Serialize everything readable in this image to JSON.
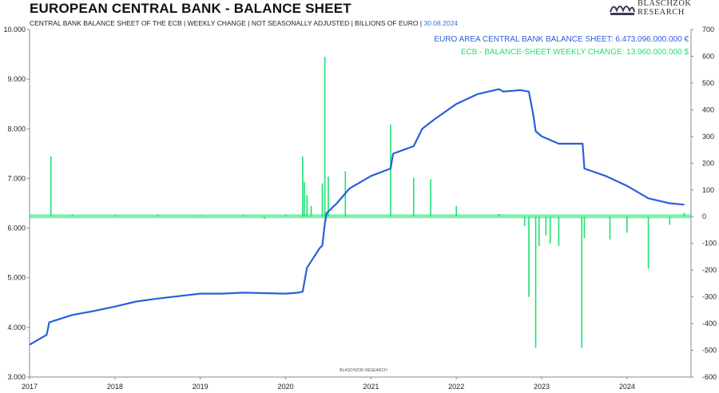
{
  "header": {
    "title": "EUROPEAN CENTRAL BANK - BALANCE SHEET",
    "subtitle": "CENTRAL BANK BALANCE SHEET OF THE ECB | WEEKLY CHANGE | NOT SEASONALLY ADJUSTED | BILLIONS OF EURO |",
    "date": "30.08.2024"
  },
  "logo": {
    "line1": "BLASCHZOK",
    "line2": "RESEARCH",
    "mark_icon": "blaschzok-logo-icon"
  },
  "chart_data": {
    "type": "line",
    "watermark": "BLASCHZOK RESEARCH",
    "colors": {
      "balance": "#2a5fdc",
      "weekly": "#1fe070"
    },
    "x_ticks": [
      "2017",
      "2018",
      "2019",
      "2020",
      "2021",
      "2022",
      "2023",
      "2024"
    ],
    "left_axis": {
      "ticks": [
        "10.000",
        "9.000",
        "8.000",
        "7.000",
        "6.000",
        "5.000",
        "4.000",
        "3.000"
      ],
      "ylim": [
        3000,
        10000
      ]
    },
    "right_axis": {
      "ticks": [
        "700",
        "600",
        "500",
        "400",
        "300",
        "200",
        "100",
        "0",
        "-100",
        "-200",
        "-300",
        "-400",
        "-500",
        "-600"
      ],
      "ylim": [
        -600,
        700
      ]
    },
    "grid": false,
    "legend_position": "top-right",
    "series": [
      {
        "name": "EURO AREA CENTRAL BANK BALANCE SHEET: 6.473.096.000.000 €",
        "axis": "left",
        "x": [
          2017.0,
          2017.2,
          2017.23,
          2017.5,
          2017.75,
          2018.0,
          2018.25,
          2018.5,
          2018.75,
          2019.0,
          2019.25,
          2019.5,
          2019.75,
          2020.0,
          2020.15,
          2020.2,
          2020.25,
          2020.4,
          2020.43,
          2020.46,
          2020.48,
          2020.6,
          2020.75,
          2021.0,
          2021.23,
          2021.26,
          2021.5,
          2021.6,
          2021.75,
          2022.0,
          2022.25,
          2022.5,
          2022.55,
          2022.75,
          2022.85,
          2022.9,
          2022.93,
          2023.0,
          2023.2,
          2023.48,
          2023.5,
          2023.75,
          2024.0,
          2024.25,
          2024.5,
          2024.67
        ],
        "values": [
          3650,
          3850,
          4100,
          4250,
          4330,
          4420,
          4520,
          4580,
          4630,
          4680,
          4680,
          4700,
          4690,
          4680,
          4700,
          4720,
          5200,
          5600,
          5650,
          6100,
          6300,
          6500,
          6800,
          7050,
          7200,
          7500,
          7650,
          8000,
          8200,
          8500,
          8700,
          8800,
          8750,
          8780,
          8750,
          8300,
          7950,
          7850,
          7700,
          7700,
          7200,
          7050,
          6850,
          6600,
          6500,
          6473
        ]
      },
      {
        "name": "ECB - BALANCE-SHEET WEEKLY CHANGE: 13.960.000.000 $",
        "axis": "right",
        "type": "bar",
        "x": [
          2017.25,
          2017.5,
          2018.0,
          2018.5,
          2019.0,
          2019.5,
          2019.75,
          2020.0,
          2020.2,
          2020.22,
          2020.25,
          2020.3,
          2020.43,
          2020.46,
          2020.5,
          2020.7,
          2021.23,
          2021.5,
          2021.7,
          2022.0,
          2022.5,
          2022.8,
          2022.85,
          2022.93,
          2022.97,
          2023.05,
          2023.1,
          2023.2,
          2023.47,
          2023.5,
          2023.8,
          2024.0,
          2024.25,
          2024.5,
          2024.67
        ],
        "values": [
          225,
          8,
          6,
          7,
          5,
          6,
          -8,
          7,
          225,
          130,
          80,
          40,
          125,
          598,
          150,
          170,
          345,
          145,
          140,
          40,
          10,
          -35,
          -300,
          -490,
          -110,
          -70,
          -100,
          -110,
          -490,
          -80,
          -85,
          -60,
          -195,
          -30,
          14
        ]
      }
    ]
  }
}
